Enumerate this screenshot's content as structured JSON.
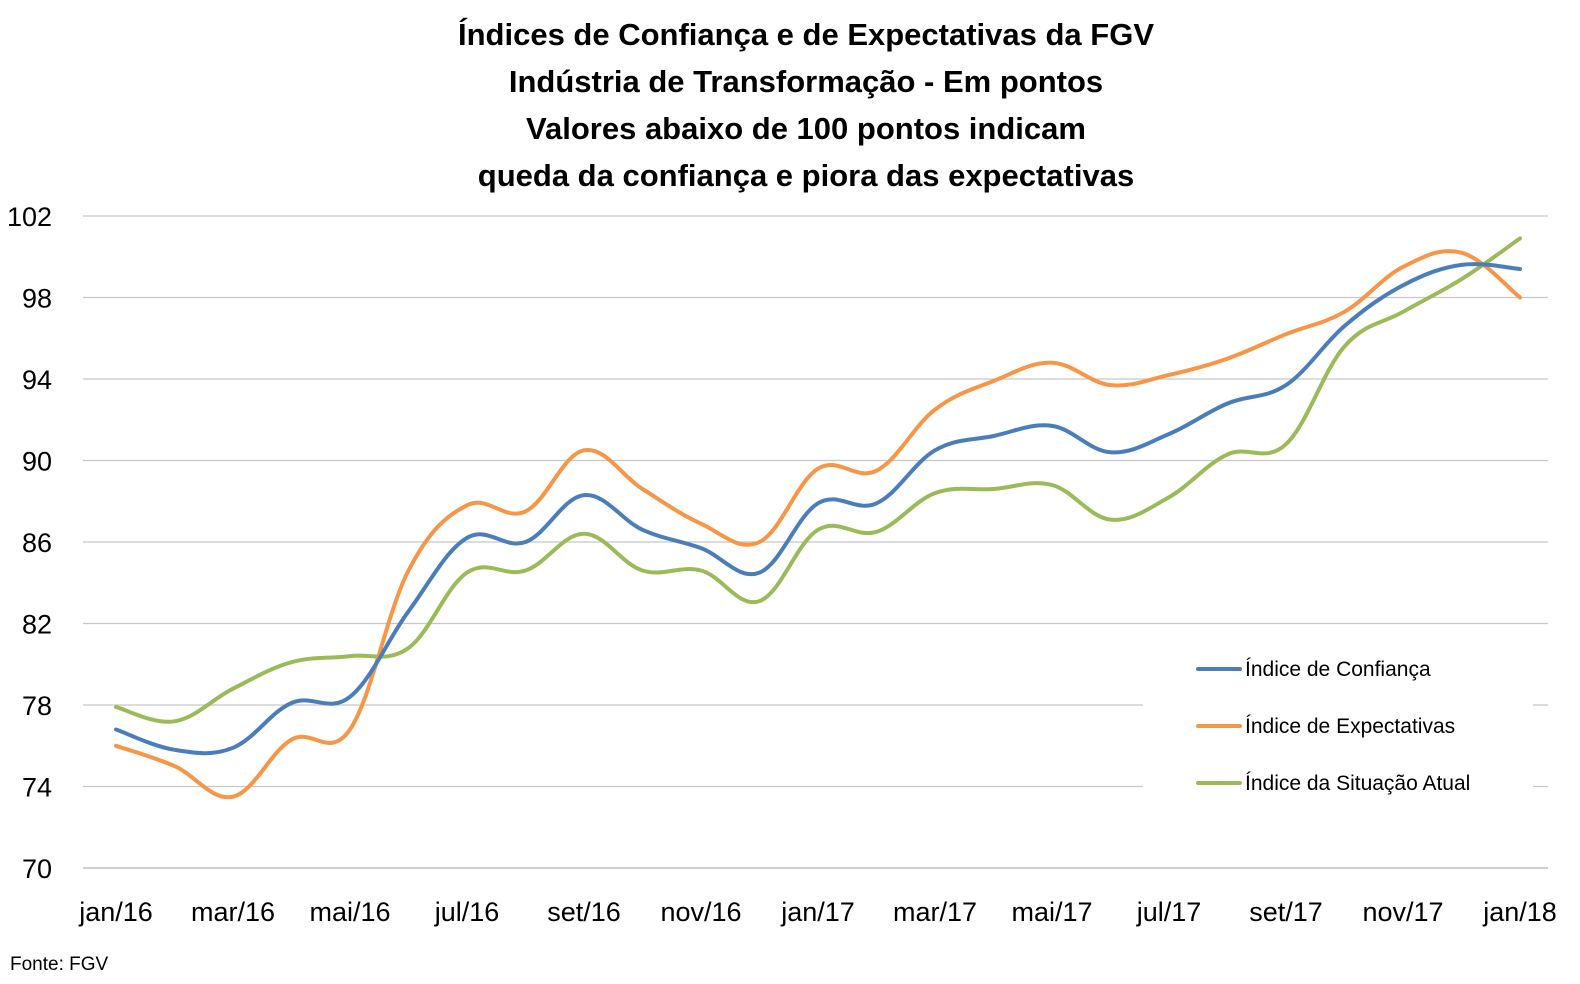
{
  "chart_data": {
    "type": "line",
    "title_lines": [
      "Índices de Confiança e de Expectativas da FGV",
      "Indústria de Transformação - Em pontos",
      "Valores abaixo de 100 pontos indicam",
      "queda da confiança e piora das expectativas"
    ],
    "source": "Fonte: FGV",
    "ylim": [
      70,
      102
    ],
    "yticks": [
      70,
      74,
      78,
      82,
      86,
      90,
      94,
      98,
      102
    ],
    "grid": true,
    "legend_position": "bottom-right",
    "x": [
      "jan/16",
      "fev/16",
      "mar/16",
      "abr/16",
      "mai/16",
      "jun/16",
      "jul/16",
      "ago/16",
      "set/16",
      "out/16",
      "nov/16",
      "dez/16",
      "jan/17",
      "fev/17",
      "mar/17",
      "abr/17",
      "mai/17",
      "jun/17",
      "jul/17",
      "ago/17",
      "set/17",
      "out/17",
      "nov/17",
      "dez/17",
      "jan/18"
    ],
    "xtick_labels": [
      "jan/16",
      "mar/16",
      "mai/16",
      "jul/16",
      "set/16",
      "nov/16",
      "jan/17",
      "mar/17",
      "mai/17",
      "jul/17",
      "set/17",
      "nov/17",
      "jan/18"
    ],
    "series": [
      {
        "name": "Índice de Confiança",
        "color": "#4a7ebb",
        "values": [
          76.8,
          75.8,
          75.9,
          78.1,
          78.4,
          82.6,
          86.2,
          86.0,
          88.3,
          86.6,
          85.7,
          84.5,
          87.9,
          87.9,
          90.5,
          91.2,
          91.7,
          90.4,
          91.3,
          92.8,
          93.7,
          96.6,
          98.6,
          99.6,
          99.4
        ]
      },
      {
        "name": "Índice de Expectativas",
        "color": "#f79646",
        "values": [
          76.0,
          75.0,
          73.5,
          76.3,
          76.8,
          84.6,
          87.8,
          87.5,
          90.5,
          88.6,
          86.9,
          86.0,
          89.6,
          89.5,
          92.5,
          93.9,
          94.8,
          93.7,
          94.2,
          95.0,
          96.2,
          97.3,
          99.5,
          100.2,
          98.0
        ]
      },
      {
        "name": "Índice da Situação Atual",
        "color": "#9bbb59",
        "values": [
          77.9,
          77.2,
          78.8,
          80.1,
          80.4,
          80.8,
          84.5,
          84.6,
          86.4,
          84.6,
          84.6,
          83.1,
          86.6,
          86.5,
          88.4,
          88.6,
          88.8,
          87.1,
          88.2,
          90.3,
          90.8,
          95.6,
          97.3,
          98.9,
          100.9
        ]
      }
    ]
  }
}
